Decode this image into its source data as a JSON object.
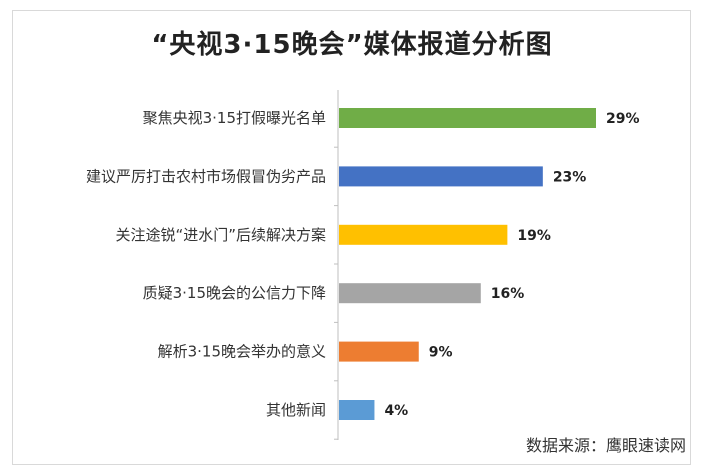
{
  "chart_data": {
    "type": "bar",
    "orientation": "horizontal",
    "title": "“央视3·15晚会”媒体报道分析图",
    "categories": [
      "聚焦央视3·15打假曝光名单",
      "建议严厉打击农村市场假冒伪劣产品",
      "关注途锐“进水门”后续解决方案",
      "质疑3·15晚会的公信力下降",
      "解析3·15晚会举办的意义",
      "其他新闻"
    ],
    "values": [
      29,
      23,
      19,
      16,
      9,
      4
    ],
    "value_labels": [
      "29%",
      "23%",
      "19%",
      "16%",
      "9%",
      "4%"
    ],
    "unit": "%",
    "colors": [
      "#70ad47",
      "#4472c4",
      "#ffc000",
      "#a5a5a5",
      "#ed7d31",
      "#5b9bd5"
    ],
    "xlim": [
      0,
      29
    ],
    "grid": false,
    "legend": "none"
  },
  "source_text": "数据来源：鹰眼速读网"
}
